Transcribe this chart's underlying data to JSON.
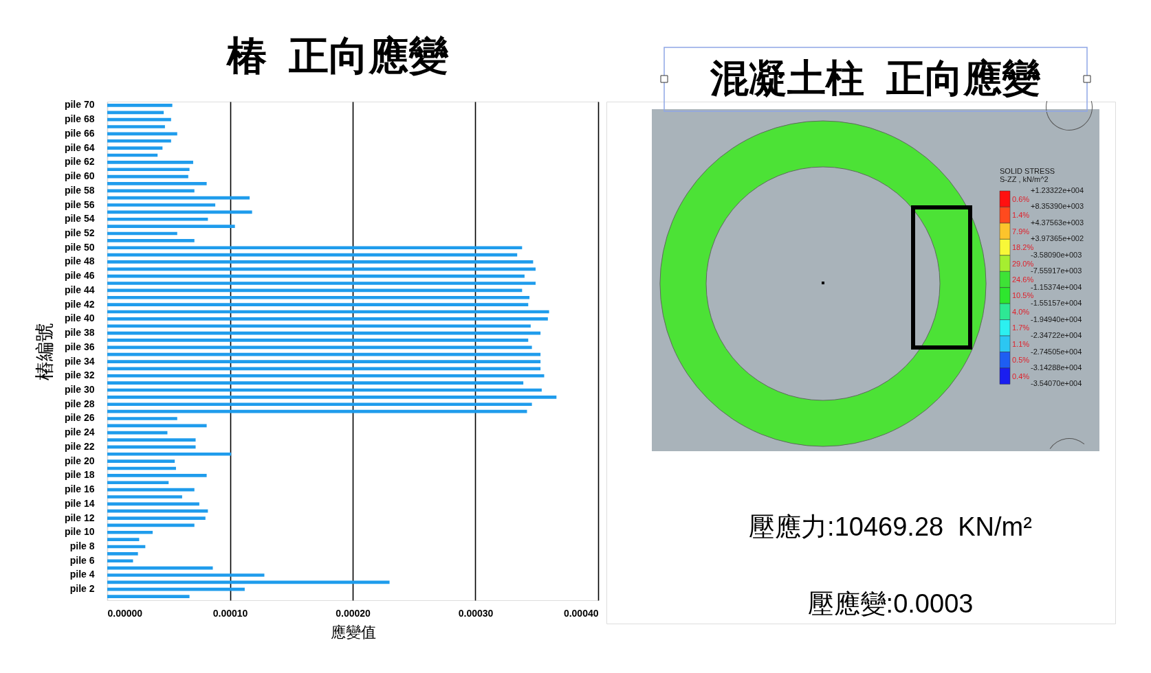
{
  "chart_data": [
    {
      "type": "bar",
      "orientation": "horizontal",
      "title": "椿  正向應變",
      "xlabel": "應變值",
      "ylabel": "樁編號",
      "categories": [
        "pile 70",
        null,
        "pile 68",
        null,
        "pile 66",
        null,
        "pile 64",
        null,
        "pile 62",
        null,
        "pile 60",
        null,
        "pile 58",
        null,
        "pile 56",
        null,
        "pile 54",
        null,
        "pile 52",
        null,
        "pile 50",
        null,
        "pile 48",
        null,
        "pile 46",
        null,
        "pile 44",
        null,
        "pile 42",
        null,
        "pile 40",
        null,
        "pile 38",
        null,
        "pile 36",
        null,
        "pile 34",
        null,
        "pile 32",
        null,
        "pile 30",
        null,
        "pile 28",
        null,
        "pile 26",
        null,
        "pile 24",
        null,
        "pile 22",
        null,
        "pile 20",
        null,
        "pile 18",
        null,
        "pile 16",
        null,
        "pile 14",
        null,
        "pile 12",
        null,
        "pile 10",
        null,
        "pile 8",
        null,
        "pile 6",
        null,
        "pile 4",
        null,
        "pile 2",
        null
      ],
      "values": [
        5.3e-05,
        4.6e-05,
        5.2e-05,
        4.7e-05,
        5.7e-05,
        5.2e-05,
        4.5e-05,
        4.1e-05,
        7e-05,
        6.7e-05,
        6.6e-05,
        8.1e-05,
        7.1e-05,
        0.000116,
        8.8e-05,
        0.000118,
        8.2e-05,
        0.000104,
        5.7e-05,
        7.1e-05,
        0.000338,
        0.000334,
        0.000347,
        0.000349,
        0.00034,
        0.000349,
        0.000338,
        0.000344,
        0.000343,
        0.00036,
        0.000359,
        0.000345,
        0.000353,
        0.000343,
        0.000346,
        0.000353,
        0.000353,
        0.000353,
        0.000356,
        0.000339,
        0.000354,
        0.000366,
        0.000346,
        0.000342,
        5.7e-05,
        8.1e-05,
        4.9e-05,
        7.2e-05,
        7.2e-05,
        0.000101,
        5.5e-05,
        5.6e-05,
        8.1e-05,
        5e-05,
        7.1e-05,
        6.1e-05,
        7.5e-05,
        8.2e-05,
        8e-05,
        7.1e-05,
        3.7e-05,
        2.6e-05,
        3.1e-05,
        2.5e-05,
        2.1e-05,
        8.6e-05,
        0.000128,
        0.00023,
        0.000112,
        6.7e-05
      ],
      "color": "#1f9cec",
      "xlim": [
        0,
        0.0004
      ],
      "xticks": [
        {
          "value": 0,
          "label": "0.00000"
        },
        {
          "value": 0.0001,
          "label": "0.00010"
        },
        {
          "value": 0.0002,
          "label": "0.00020"
        },
        {
          "value": 0.0003,
          "label": "0.00030"
        },
        {
          "value": 0.0004,
          "label": "0.00040"
        }
      ],
      "grid": "x"
    },
    {
      "type": "other",
      "title": "混凝土柱  正向應變",
      "annotations": [
        "SOLID STRESS",
        "S-ZZ , kN/m^2",
        "+1.23322e+004",
        "0.6%",
        "+8.35390e+003",
        "1.4%",
        "+4.37563e+003",
        "7.9%",
        "+3.97365e+002",
        "18.2%",
        "-3.58090e+003",
        "29.0%",
        "-7.55917e+003",
        "24.6%",
        "-1.15374e+004",
        "10.5%",
        "-1.55157e+004",
        "4.0%",
        "-1.94940e+004",
        "1.7%",
        "-2.34722e+004",
        "1.1%",
        "-2.74505e+004",
        "0.5%",
        "-3.14288e+004",
        "0.4%",
        "-3.54070e+004",
        "壓應力:10469.28  KN/m²",
        "壓應變:0.0003"
      ]
    }
  ]
}
